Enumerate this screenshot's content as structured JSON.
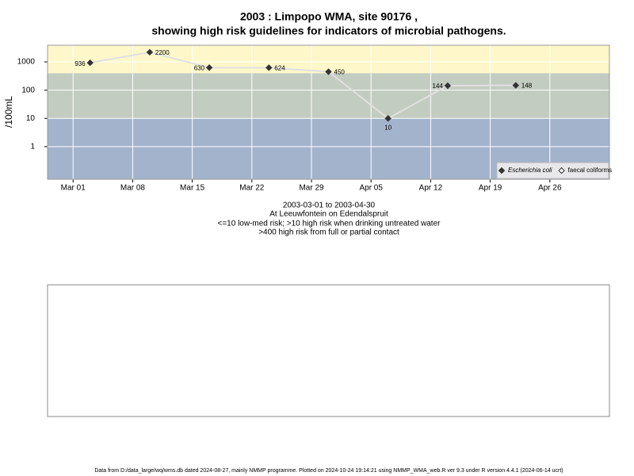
{
  "chart_data": {
    "type": "line",
    "title": "2003 : Limpopo WMA, site 90176 ,",
    "subtitle": "showing high risk guidelines for indicators of microbial pathogens.",
    "y_label": "/100mL",
    "x": [
      "2003-03-03",
      "2003-03-10",
      "2003-03-17",
      "2003-03-24",
      "2003-03-31",
      "2003-04-07",
      "2003-04-14",
      "2003-04-22"
    ],
    "series": [
      {
        "name": "Escherichia coli",
        "color": "#333333",
        "line_color": "#e0e0e0",
        "marker": "filled-diamond",
        "values": [
          936,
          2200,
          630,
          624,
          450,
          10,
          144,
          148
        ]
      },
      {
        "name": "faecal coliforms",
        "color": "#333333",
        "marker": "open-diamond",
        "values": [
          null,
          null,
          null,
          null,
          null,
          null,
          null,
          null
        ]
      }
    ],
    "xlim": [
      "2003-02-26",
      "2003-05-03"
    ],
    "xticks": [
      {
        "value": "2003-03-01",
        "label": "Mar 01"
      },
      {
        "value": "2003-03-08",
        "label": "Mar 08"
      },
      {
        "value": "2003-03-15",
        "label": "Mar 15"
      },
      {
        "value": "2003-03-22",
        "label": "Mar 22"
      },
      {
        "value": "2003-03-29",
        "label": "Mar 29"
      },
      {
        "value": "2003-04-05",
        "label": "Apr 05"
      },
      {
        "value": "2003-04-12",
        "label": "Apr 12"
      },
      {
        "value": "2003-04-19",
        "label": "Apr 19"
      },
      {
        "value": "2003-04-26",
        "label": "Apr 26"
      }
    ],
    "ylim": [
      0.07,
      3900
    ],
    "yticks": [
      1,
      10,
      100,
      1000
    ],
    "log_y": true,
    "grid": true,
    "risk_thresholds": [
      10,
      400
    ],
    "risk_colors": [
      "#a3b3cc",
      "#c3ccc0",
      "#fdf7c9"
    ],
    "legend": "bottom-right",
    "notes": [
      "2003-03-01 to 2003-04-30",
      "At Leeuwfontein on Edendalspruit",
      "<=10 low-med risk; >10 high risk when drinking untreated water",
      ">400 high risk from full or partial contact"
    ],
    "footer": "Data from D:/data_large/wq/wms.db dated 2024-08-27, mainly NMMP programme. Plotted on 2024-10-24 19:14:21 using NMMP_WMA_web.R ver 9.3 under R version 4.4.1 (2024-06-14 ucrt)"
  }
}
